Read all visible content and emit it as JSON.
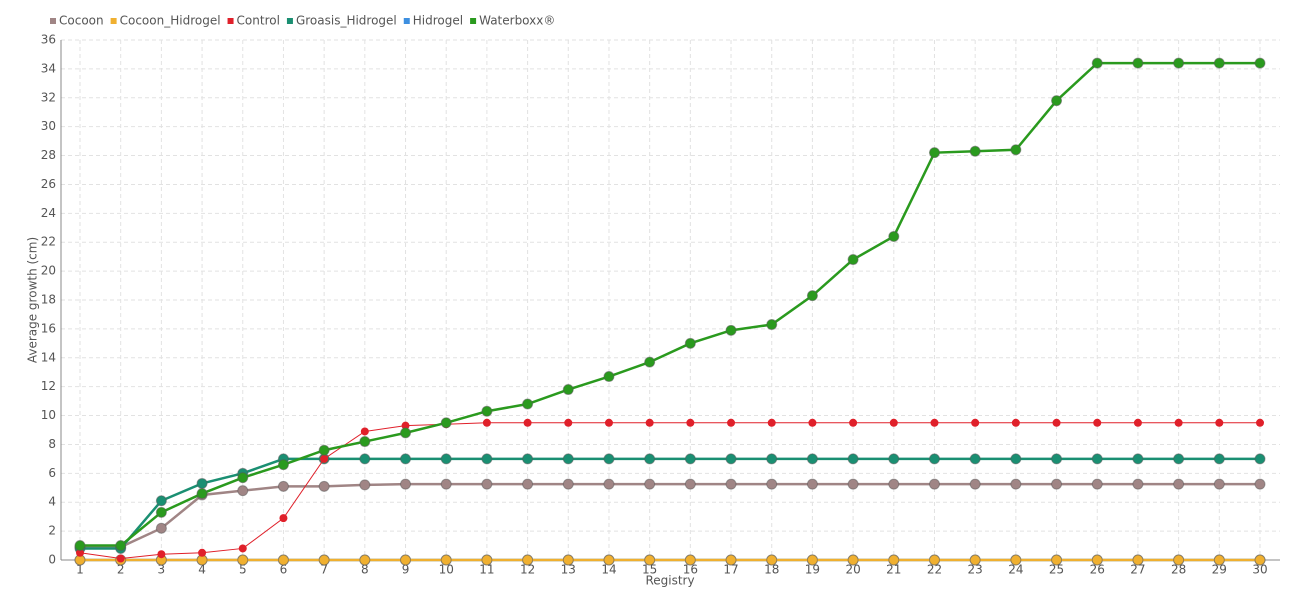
{
  "chart_data": {
    "type": "line",
    "x_label": "Registry",
    "y_label": "Average growth (cm)",
    "categories": [
      "1",
      "2",
      "3",
      "4",
      "5",
      "6",
      "7",
      "8",
      "9",
      "10",
      "11",
      "12",
      "13",
      "14",
      "15",
      "16",
      "17",
      "18",
      "19",
      "20",
      "21",
      "22",
      "23",
      "24",
      "25",
      "26",
      "27",
      "28",
      "29",
      "30"
    ],
    "series": [
      {
        "name": "Cocoon",
        "color": "#a08585",
        "values": [
          0.9,
          0.9,
          2.2,
          4.5,
          4.8,
          5.1,
          5.1,
          5.2,
          5.25,
          5.25,
          5.25,
          5.25,
          5.25,
          5.25,
          5.25,
          5.25,
          5.25,
          5.25,
          5.25,
          5.25,
          5.25,
          5.25,
          5.25,
          5.25,
          5.25,
          5.25,
          5.25,
          5.25,
          5.25,
          5.25
        ]
      },
      {
        "name": "Cocoon_Hidrogel",
        "color": "#f0b030",
        "values": [
          0,
          0,
          0,
          0,
          0,
          0,
          0,
          0,
          0,
          0,
          0,
          0,
          0,
          0,
          0,
          0,
          0,
          0,
          0,
          0,
          0,
          0,
          0,
          0,
          0,
          0,
          0,
          0,
          0,
          0
        ]
      },
      {
        "name": "Control",
        "color": "#e0202a",
        "values": [
          0.5,
          0.1,
          0.4,
          0.5,
          0.8,
          2.9,
          7.0,
          8.9,
          9.3,
          9.4,
          9.5,
          9.5,
          9.5,
          9.5,
          9.5,
          9.5,
          9.5,
          9.5,
          9.5,
          9.5,
          9.5,
          9.5,
          9.5,
          9.5,
          9.5,
          9.5,
          9.5,
          9.5,
          9.5,
          9.5
        ]
      },
      {
        "name": "Groasis_Hidrogel",
        "color": "#1a8f72",
        "values": [
          0.8,
          0.8,
          4.1,
          5.3,
          6.0,
          7.0,
          7.0,
          7.0,
          7.0,
          7.0,
          7.0,
          7.0,
          7.0,
          7.0,
          7.0,
          7.0,
          7.0,
          7.0,
          7.0,
          7.0,
          7.0,
          7.0,
          7.0,
          7.0,
          7.0,
          7.0,
          7.0,
          7.0,
          7.0,
          7.0
        ]
      },
      {
        "name": "Hidrogel",
        "color": "#3d8fe0",
        "values": [
          0,
          0,
          0,
          0,
          0,
          0,
          0,
          0,
          0,
          0,
          0,
          0,
          0,
          0,
          0,
          0,
          0,
          0,
          0,
          0,
          0,
          0,
          0,
          0,
          0,
          0,
          0,
          0,
          0,
          0
        ]
      },
      {
        "name": "Waterboxx®",
        "color": "#2a9a1e",
        "values": [
          1.0,
          1.0,
          3.3,
          4.6,
          5.7,
          6.6,
          7.6,
          8.2,
          8.8,
          9.5,
          10.3,
          10.8,
          11.8,
          12.7,
          13.7,
          15.0,
          15.9,
          16.3,
          18.3,
          20.8,
          22.4,
          28.2,
          28.3,
          28.4,
          31.8,
          34.4,
          34.4,
          34.4,
          34.4,
          34.4
        ]
      }
    ],
    "ylim": [
      0,
      36
    ],
    "yticks": [
      0,
      2,
      4,
      6,
      8,
      10,
      12,
      14,
      16,
      18,
      20,
      22,
      24,
      26,
      28,
      30,
      32,
      34,
      36
    ],
    "grid": true
  }
}
